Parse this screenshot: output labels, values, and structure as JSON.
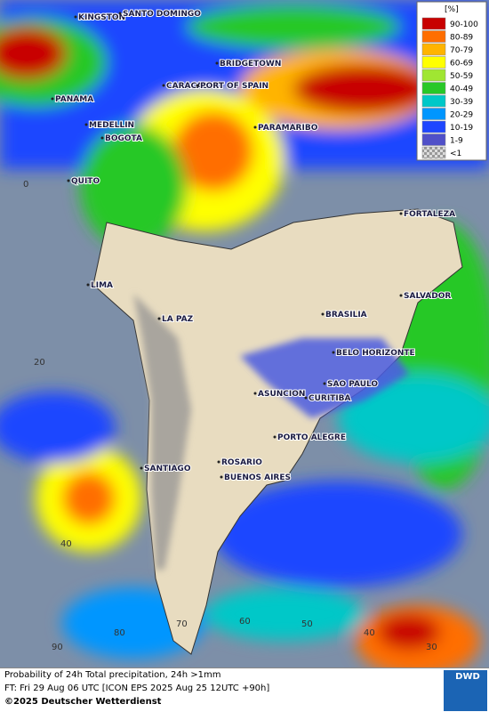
{
  "map": {
    "cities": [
      "KINGSTON",
      "SANTO DOMINGO",
      "BRIDGETOWN",
      "PANAMA",
      "CARACAS",
      "PORT OF SPAIN",
      "MEDELLIN",
      "BOGOTA",
      "PARAMARIBO",
      "QUITO",
      "FORTALEZA",
      "LIMA",
      "SALVADOR",
      "LA PAZ",
      "BRASILIA",
      "BELO HORIZONTE",
      "SAO PAULO",
      "ASUNCION",
      "CURITIBA",
      "PORTO ALEGRE",
      "SANTIAGO",
      "ROSARIO",
      "BUENOS AIRES"
    ],
    "lat_labels": [
      "0",
      "20",
      "40"
    ],
    "lon_labels": [
      "90",
      "80",
      "70",
      "60",
      "50",
      "40",
      "30"
    ],
    "legend": {
      "title": "[%]",
      "items": [
        {
          "label": "90-100",
          "color": "#c80000"
        },
        {
          "label": "80-89",
          "color": "#ff6e00"
        },
        {
          "label": "70-79",
          "color": "#ffb400"
        },
        {
          "label": "60-69",
          "color": "#ffff00"
        },
        {
          "label": "50-59",
          "color": "#a0e632"
        },
        {
          "label": "40-49",
          "color": "#28c828"
        },
        {
          "label": "30-39",
          "color": "#00c8c8"
        },
        {
          "label": "20-29",
          "color": "#0096ff"
        },
        {
          "label": "10-19",
          "color": "#1e46ff"
        },
        {
          "label": "1-9",
          "color": "#5050c8"
        },
        {
          "label": "<1",
          "color": "#bbbbbb"
        }
      ]
    }
  },
  "footer": {
    "line1": "Probability of 24h Total precipitation, 24h >1mm",
    "line2": "FT: Fri 29 Aug 06 UTC [ICON EPS 2025 Aug 25 12UTC +90h]",
    "copyright": "©2025 Deutscher Wetterdienst",
    "logo": "DWD"
  }
}
